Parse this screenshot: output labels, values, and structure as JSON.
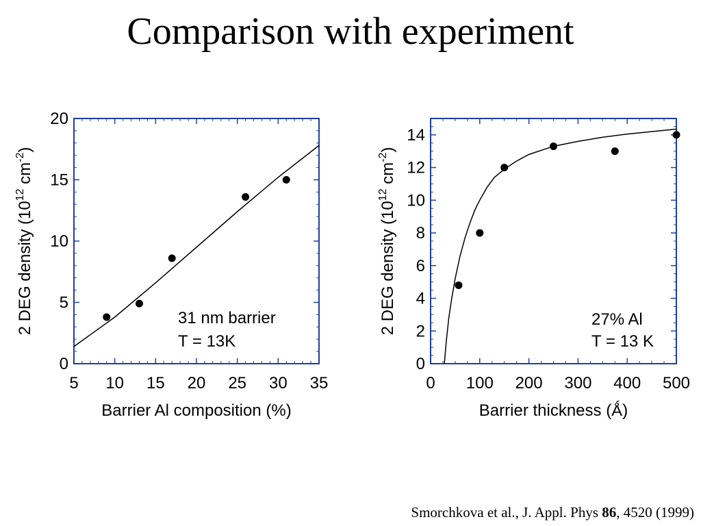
{
  "slide": {
    "title": "Comparison with experiment",
    "citation": {
      "authors": "Smorchkova et al., J. Appl. Phys ",
      "volume": "86",
      "rest": ", 4520 (1999)"
    }
  },
  "chart_data": [
    {
      "type": "scatter",
      "xlabel": "Barrier Al composition (%)",
      "ylabel": {
        "main": "2 DEG density (10",
        "exp1": "12",
        "mid": " cm",
        "exp2": "-2",
        "close": ")"
      },
      "xlim": [
        5,
        35
      ],
      "ylim": [
        0,
        20
      ],
      "xticks": [
        5,
        10,
        15,
        20,
        25,
        30,
        35
      ],
      "yticks": [
        0,
        5,
        10,
        15,
        20
      ],
      "grid": false,
      "annotation": [
        "31 nm barrier",
        "T = 13K"
      ],
      "series": [
        {
          "kind": "points",
          "x": [
            9,
            13,
            17,
            26,
            31
          ],
          "y": [
            3.8,
            4.9,
            8.6,
            13.6,
            15.0
          ]
        },
        {
          "kind": "curve",
          "x": [
            5,
            10,
            15,
            20,
            25,
            30,
            35
          ],
          "y": [
            1.4,
            3.8,
            6.6,
            9.5,
            12.4,
            15.2,
            17.8
          ]
        }
      ]
    },
    {
      "type": "scatter",
      "xlabel": "Barrier thickness (Ǻ)",
      "ylabel": {
        "main": "2 DEG density (10",
        "exp1": "12",
        "mid": " cm",
        "exp2": "-2",
        "close": ")"
      },
      "xlim": [
        0,
        500
      ],
      "ylim": [
        0,
        15
      ],
      "xticks": [
        0,
        100,
        200,
        300,
        400,
        500
      ],
      "yticks": [
        0,
        2,
        4,
        6,
        8,
        10,
        12,
        14
      ],
      "grid": false,
      "annotation": [
        "27% Al",
        "T = 13 K"
      ],
      "series": [
        {
          "kind": "points",
          "x": [
            57,
            100,
            150,
            250,
            375,
            500
          ],
          "y": [
            4.8,
            8.0,
            12.0,
            13.3,
            13.0,
            14.0
          ]
        },
        {
          "kind": "curve",
          "x": [
            28,
            32,
            37,
            43,
            50,
            60,
            70,
            80,
            90,
            100,
            115,
            130,
            150,
            175,
            200,
            250,
            300,
            350,
            400,
            450,
            500
          ],
          "y": [
            0,
            1.4,
            2.8,
            4.0,
            5.2,
            6.6,
            7.7,
            8.6,
            9.4,
            10.0,
            10.8,
            11.4,
            11.9,
            12.4,
            12.8,
            13.3,
            13.6,
            13.85,
            14.05,
            14.2,
            14.35
          ]
        }
      ]
    }
  ]
}
